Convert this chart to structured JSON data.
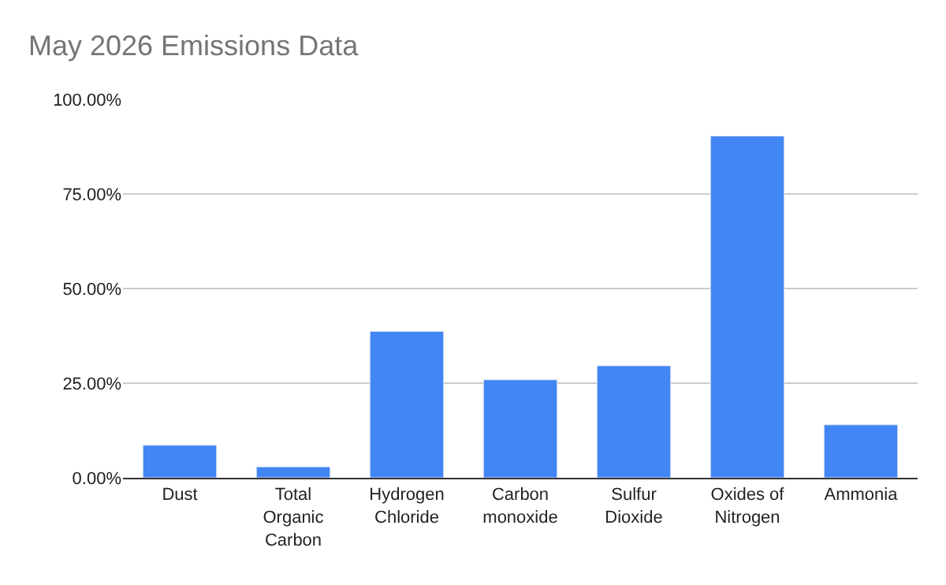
{
  "chart_data": {
    "type": "bar",
    "title": "May 2026 Emissions Data",
    "categories": [
      "Dust",
      "Total Organic Carbon",
      "Hydrogen Chloride",
      "Carbon monoxide",
      "Sulfur Dioxide",
      "Oxides of Nitrogen",
      "Ammonia"
    ],
    "values": [
      8.6,
      2.9,
      38.7,
      25.9,
      29.6,
      90.3,
      14.0
    ],
    "color": "#4285f4",
    "ylim": [
      0,
      100
    ],
    "yticks": [
      {
        "value": 0,
        "label": "0.00%"
      },
      {
        "value": 25,
        "label": "25.00%"
      },
      {
        "value": 50,
        "label": "50.00%"
      },
      {
        "value": 75,
        "label": "75.00%"
      },
      {
        "value": 100,
        "label": "100.00%"
      }
    ],
    "grid": "y"
  }
}
